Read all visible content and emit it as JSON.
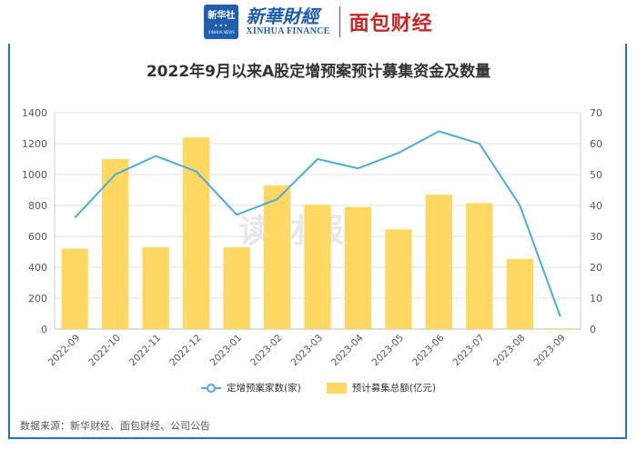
{
  "header": {
    "logo_box_main": "新华社",
    "logo_box_sub": "XINHUA NEWS",
    "brand_cn": "新華財經",
    "brand_en": "XINHUA FINANCE",
    "brand2": "面包财经"
  },
  "watermark": "读财报",
  "source": "数据来源：新华财经、面包财经、公司公告",
  "colors": {
    "bar": "#ffd863",
    "line": "#4aabdc",
    "frame": "#2a6fbf"
  },
  "chart_data": {
    "type": "bar",
    "title": "2022年9月以来A股定增预案预计募集资金及数量",
    "categories": [
      "2022-09",
      "2022-10",
      "2022-11",
      "2022-12",
      "2023-01",
      "2023-02",
      "2023-03",
      "2023-04",
      "2023-05",
      "2023-06",
      "2023-07",
      "2023-08",
      "2023-09"
    ],
    "series": [
      {
        "name": "预计募集总额(亿元)",
        "type": "bar",
        "axis": "left",
        "values": [
          520,
          1100,
          530,
          1240,
          530,
          930,
          805,
          790,
          645,
          870,
          815,
          455,
          5
        ]
      },
      {
        "name": "定增预案家数(家)",
        "type": "line",
        "axis": "right",
        "values": [
          36,
          50,
          56,
          51,
          37,
          42,
          55,
          52,
          57,
          64,
          60,
          40,
          4
        ]
      }
    ],
    "ylim_left": [
      0,
      1400
    ],
    "ylim_right": [
      0,
      70
    ],
    "yticks_left": [
      "0",
      "200",
      "400",
      "600",
      "800",
      "1000",
      "1200",
      "1400"
    ],
    "yticks_right": [
      "0",
      "10",
      "20",
      "30",
      "40",
      "50",
      "60",
      "70"
    ],
    "grid": true,
    "legend_position": "bottom"
  }
}
